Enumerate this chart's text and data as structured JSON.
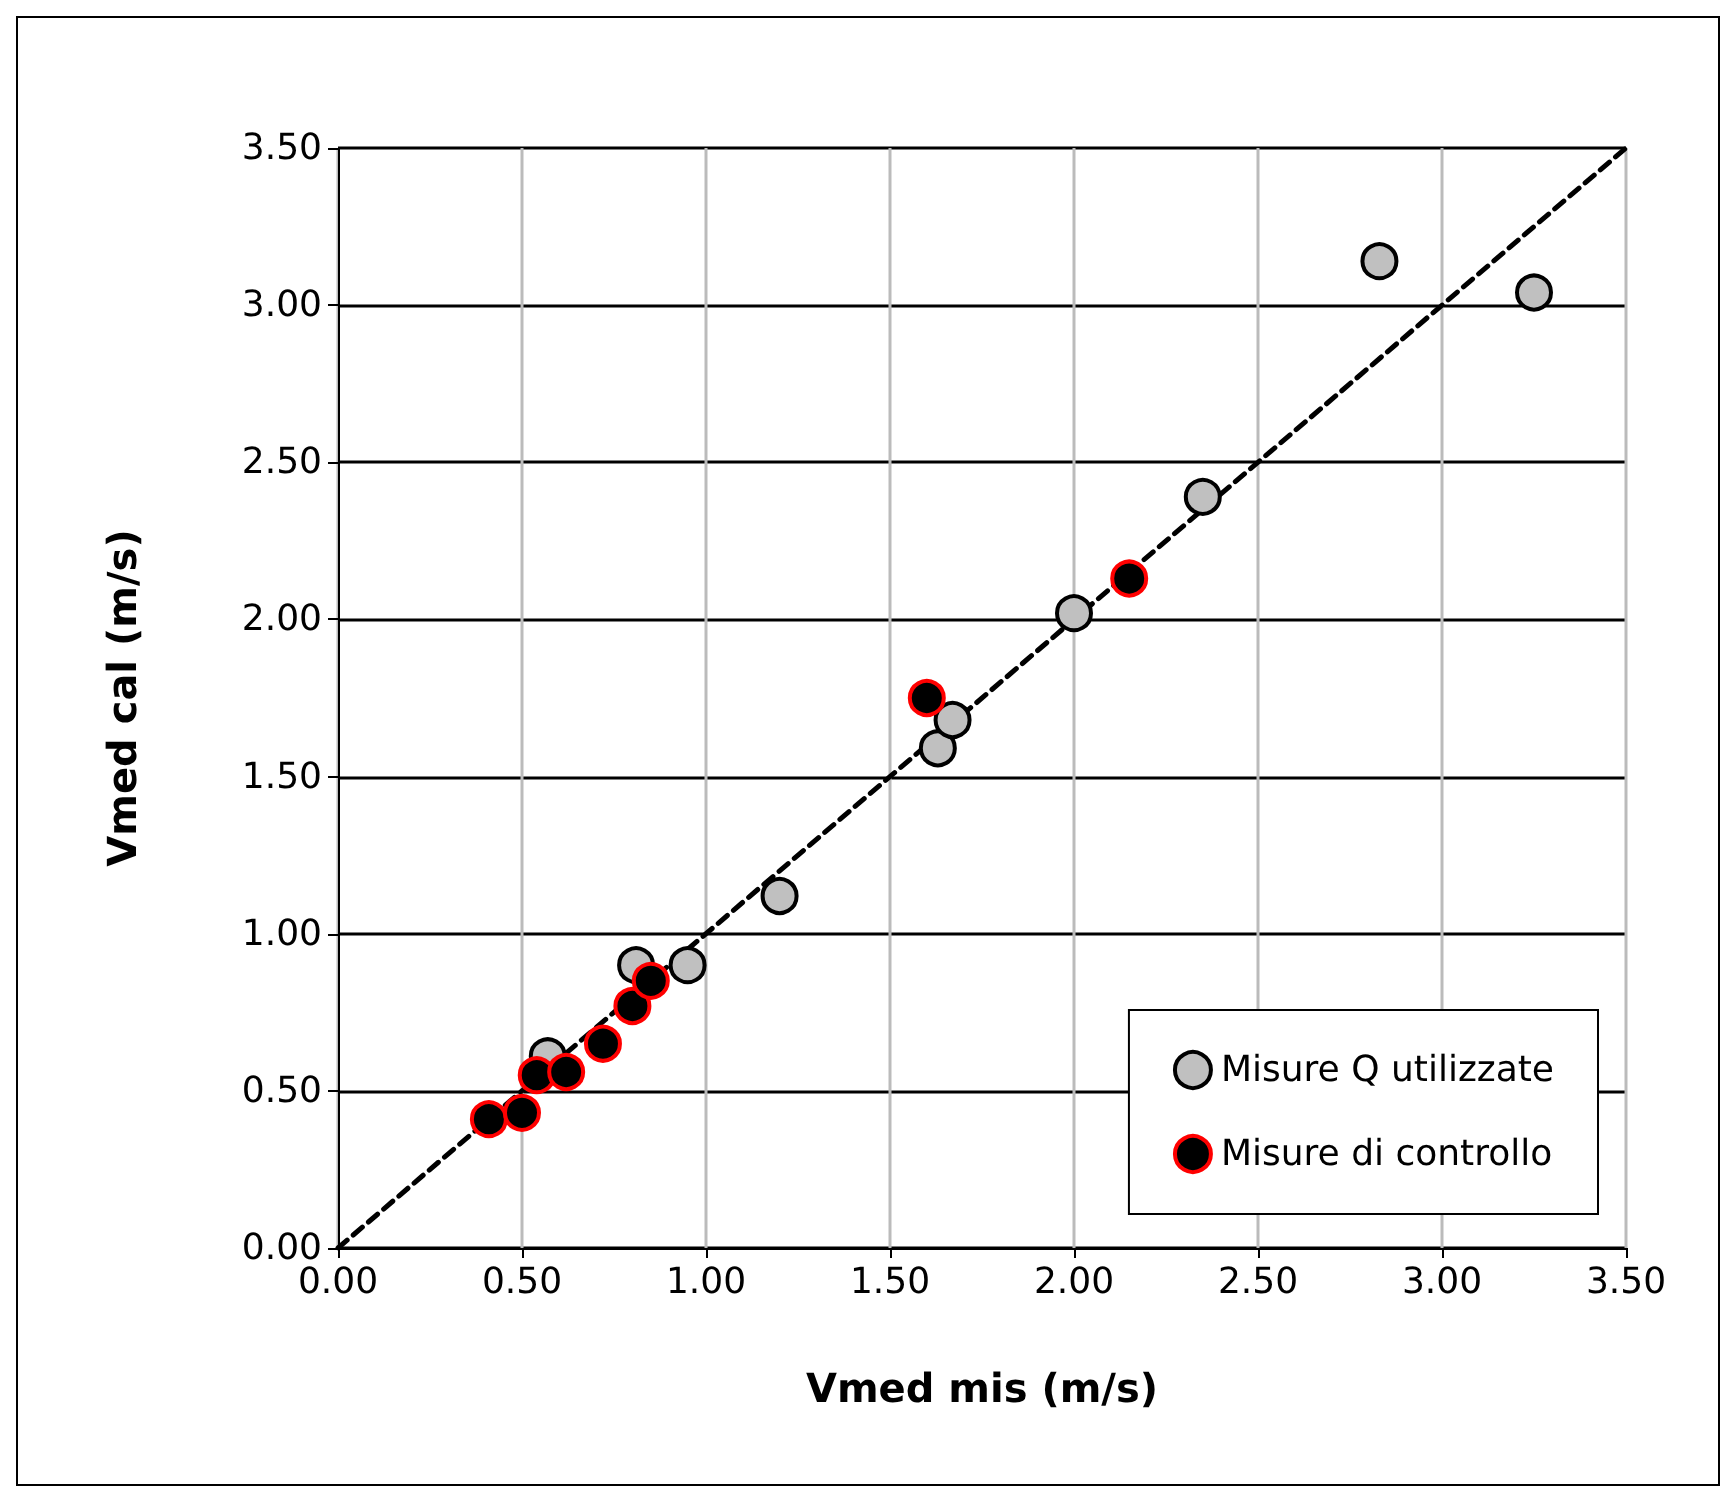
{
  "chart_data": {
    "type": "scatter",
    "xlabel": "Vmed mis (m/s)",
    "ylabel": "Vmed cal (m/s)",
    "xlim": [
      0,
      3.5
    ],
    "ylim": [
      0,
      3.5
    ],
    "xticks": [
      {
        "value": 0,
        "label": "0.00"
      },
      {
        "value": 0.5,
        "label": "0.50"
      },
      {
        "value": 1,
        "label": "1.00"
      },
      {
        "value": 1.5,
        "label": "1.50"
      },
      {
        "value": 2,
        "label": "2.00"
      },
      {
        "value": 2.5,
        "label": "2.50"
      },
      {
        "value": 3,
        "label": "3.00"
      },
      {
        "value": 3.5,
        "label": "3.50"
      }
    ],
    "yticks": [
      {
        "value": 0,
        "label": "0.00"
      },
      {
        "value": 0.5,
        "label": "0.50"
      },
      {
        "value": 1,
        "label": "1.00"
      },
      {
        "value": 1.5,
        "label": "1.50"
      },
      {
        "value": 2,
        "label": "2.00"
      },
      {
        "value": 2.5,
        "label": "2.50"
      },
      {
        "value": 3,
        "label": "3.00"
      },
      {
        "value": 3.5,
        "label": "3.50"
      }
    ],
    "grid": true,
    "legend": "bottom right",
    "marker": "circle",
    "series": [
      {
        "type": "line",
        "color": "#000000",
        "line_style": "dashed",
        "marker": "none",
        "x": [
          0,
          3.5
        ],
        "values": [
          0,
          3.5
        ]
      },
      {
        "name": "Misure Q utilizzate",
        "color": "#c0c0c0",
        "x": [
          0.57,
          0.81,
          0.95,
          1.2,
          1.63,
          1.67,
          2.0,
          2.35,
          2.83,
          3.25
        ],
        "values": [
          0.61,
          0.9,
          0.9,
          1.12,
          1.59,
          1.68,
          2.02,
          2.39,
          3.14,
          3.04
        ]
      },
      {
        "name": "Misure di controllo",
        "color": "#000000",
        "x": [
          0.41,
          0.5,
          0.54,
          0.62,
          0.72,
          0.8,
          0.85,
          1.6,
          2.15
        ],
        "values": [
          0.41,
          0.43,
          0.55,
          0.56,
          0.65,
          0.77,
          0.85,
          1.75,
          2.13
        ]
      }
    ]
  }
}
